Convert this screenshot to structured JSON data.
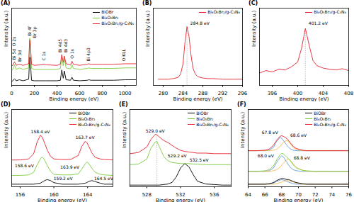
{
  "chart_data": [
    {
      "type": "line",
      "title": "(A)",
      "x_label": "Binding energy (eV)",
      "y_label": "Intensity (a.u.)",
      "xlim": [
        0,
        1100
      ],
      "xticks": [
        0,
        200,
        400,
        600,
        800,
        1000
      ],
      "ylim": [
        0,
        150
      ],
      "tick_labels": "x",
      "legend": "top-right",
      "x": [
        0,
        10,
        25,
        40,
        68,
        100,
        150,
        159,
        164,
        175,
        200,
        260,
        285,
        300,
        400,
        430,
        442,
        455,
        465,
        480,
        520,
        532,
        545,
        600,
        670,
        680,
        700,
        800,
        900,
        1000,
        1100
      ],
      "series": [
        {
          "name": "BiOBr",
          "color": "#000000",
          "values": [
            8,
            9,
            13,
            9,
            11,
            9,
            12,
            55,
            50,
            10,
            9,
            9,
            9,
            9,
            9,
            10,
            30,
            14,
            28,
            11,
            10,
            16,
            10,
            9,
            10,
            11,
            10,
            10,
            10,
            11,
            11
          ]
        },
        {
          "name": "Bi₄O₅Br₂",
          "color": "#7ccd3c",
          "values": [
            30,
            31,
            40,
            31,
            34,
            31,
            34,
            92,
            85,
            33,
            31,
            31,
            31,
            31,
            31,
            33,
            55,
            38,
            52,
            34,
            32,
            40,
            33,
            31,
            33,
            34,
            33,
            33,
            33,
            34,
            34
          ]
        },
        {
          "name": "Bi₄O₅Br₂/g-C₃N₄",
          "color": "#e8212e",
          "values": [
            38,
            39,
            46,
            39,
            41,
            39,
            42,
            88,
            82,
            41,
            39,
            40,
            41,
            40,
            39,
            41,
            60,
            45,
            57,
            42,
            40,
            47,
            41,
            39,
            41,
            42,
            41,
            41,
            41,
            42,
            42
          ]
        }
      ],
      "annotations": [
        {
          "text": "O 2s",
          "x": 25,
          "y": 76
        },
        {
          "text": "Bi 5d",
          "x": 25,
          "y": 50
        },
        {
          "text": "Br 3d",
          "x": 70,
          "y": 46
        },
        {
          "text": "Bi 4f",
          "x": 159,
          "y": 96
        },
        {
          "text": "Br 3p",
          "x": 205,
          "y": 92
        },
        {
          "text": "C 1s",
          "x": 285,
          "y": 48
        },
        {
          "text": "Bi 4d5",
          "x": 430,
          "y": 64
        },
        {
          "text": "Bi 4d3",
          "x": 480,
          "y": 64
        },
        {
          "text": "O 1s",
          "x": 532,
          "y": 52
        },
        {
          "text": "Bi 4p3",
          "x": 680,
          "y": 47
        },
        {
          "text": "O KLL",
          "x": 990,
          "y": 47
        }
      ]
    },
    {
      "type": "line",
      "title": "(B)",
      "x_label": "Binding energy (eV)",
      "y_label": "Intensity (a.u.)",
      "xlim": [
        278,
        296
      ],
      "xticks": [
        280,
        284,
        288,
        292,
        296
      ],
      "ylim": [
        0,
        125
      ],
      "tick_labels": "x",
      "legend": "top-right",
      "x": [
        279,
        280,
        281,
        282,
        283,
        283.5,
        284,
        284.4,
        284.8,
        285.2,
        285.6,
        286,
        286.5,
        287,
        288,
        289,
        290,
        292,
        294,
        296
      ],
      "series": [
        {
          "name": "Bi₄O₅Br₂/g-C₃N₄",
          "color": "#e8212e",
          "values": [
            10,
            10,
            10,
            11,
            13,
            18,
            35,
            70,
            95,
            80,
            50,
            28,
            18,
            14,
            12,
            11,
            11,
            10,
            10,
            10
          ]
        }
      ],
      "annotations": [
        {
          "text": "284.8 eV",
          "x": 287.4,
          "y": 100
        }
      ],
      "reference_lines": [
        284.8
      ]
    },
    {
      "type": "line",
      "title": "(C)",
      "x_label": "Binding energy (eV)",
      "y_label": "Intensity (a.u.)",
      "xlim": [
        394,
        408
      ],
      "xticks": [
        396,
        400,
        404,
        408
      ],
      "ylim": [
        0,
        125
      ],
      "tick_labels": "x",
      "legend": "top-right",
      "x": [
        394,
        395,
        396,
        397,
        398,
        399,
        400,
        400.6,
        401.2,
        401.8,
        402.4,
        403,
        404,
        405,
        406,
        407,
        408
      ],
      "series": [
        {
          "name": "Bi₄O₅Br₂/g-C₃N₄",
          "color": "#e8212e",
          "values": [
            20,
            24,
            22,
            26,
            25,
            30,
            38,
            60,
            92,
            65,
            40,
            32,
            28,
            26,
            25,
            27,
            24
          ]
        }
      ],
      "annotations": [
        {
          "text": "401.2 eV",
          "x": 403.2,
          "y": 100
        }
      ],
      "reference_lines": [
        401.2
      ]
    },
    {
      "type": "line",
      "title": "(D)",
      "x_label": "Binding energy (eV)",
      "y_label": "Intensity (a.u.)",
      "xlim": [
        155,
        167
      ],
      "xticks": [
        156,
        160,
        164
      ],
      "ylim": [
        0,
        150
      ],
      "tick_labels": "x",
      "legend": "top-right",
      "x": [
        155,
        156,
        157,
        157.6,
        158,
        158.4,
        158.6,
        158.8,
        159.2,
        159.6,
        160,
        161,
        162,
        162.9,
        163.3,
        163.7,
        163.9,
        164.1,
        164.5,
        164.9,
        165.5,
        166,
        167
      ],
      "series": [
        {
          "name": "BiOBr",
          "color": "#000000",
          "values": [
            5,
            5,
            5,
            5,
            6,
            7,
            9,
            11,
            14,
            12,
            8,
            5,
            5,
            5,
            6,
            7,
            8,
            10,
            12,
            10,
            7,
            5,
            5
          ]
        },
        {
          "name": "Bi₄O₅Br₂",
          "color": "#7ccd3c",
          "values": [
            22,
            22,
            23,
            28,
            42,
            54,
            58,
            55,
            42,
            30,
            24,
            23,
            23,
            25,
            34,
            44,
            48,
            46,
            36,
            28,
            24,
            23,
            22
          ]
        },
        {
          "name": "Bi₄O₅Br₂/g-C₃N₄",
          "color": "#e8212e",
          "values": [
            52,
            52,
            54,
            64,
            86,
            100,
            97,
            89,
            72,
            59,
            54,
            53,
            53,
            61,
            78,
            88,
            86,
            80,
            66,
            57,
            54,
            53,
            52
          ]
        }
      ],
      "annotations": [
        {
          "text": "158.4 eV",
          "x": 158.4,
          "y": 106
        },
        {
          "text": "163.7 eV",
          "x": 163.7,
          "y": 95
        },
        {
          "text": "158.6 eV",
          "x": 156.5,
          "y": 40
        },
        {
          "text": "163.9 eV",
          "x": 161.9,
          "y": 38
        },
        {
          "text": "159.2 eV",
          "x": 161.1,
          "y": 16
        },
        {
          "text": "164.5 eV",
          "x": 165.9,
          "y": 16
        }
      ]
    },
    {
      "type": "line",
      "title": "(E)",
      "x_label": "Binding energy (eV)",
      "y_label": "Intensity (a.u.)",
      "xlim": [
        526,
        538
      ],
      "xticks": [
        528,
        532,
        536
      ],
      "ylim": [
        0,
        140
      ],
      "tick_labels": "x",
      "legend": "top-right",
      "x": [
        526,
        527,
        528,
        528.5,
        529,
        529.2,
        529.5,
        530,
        530.5,
        531,
        531.5,
        532,
        532.5,
        533,
        533.5,
        534,
        535,
        536,
        537,
        538
      ],
      "series": [
        {
          "name": "BiOBr",
          "color": "#000000",
          "values": [
            3,
            3,
            3,
            3,
            3,
            3,
            3,
            4,
            5,
            8,
            18,
            34,
            42,
            36,
            22,
            10,
            5,
            4,
            3,
            3
          ]
        },
        {
          "name": "Bi₄O₅Br₂",
          "color": "#7ccd3c",
          "values": [
            40,
            41,
            50,
            70,
            81,
            82,
            72,
            55,
            47,
            44,
            43,
            42,
            42,
            42,
            41,
            41,
            40,
            40,
            40,
            40
          ]
        },
        {
          "name": "Bi₄O₅Br₂/g-C₃N₄",
          "color": "#e8212e",
          "values": [
            60,
            62,
            72,
            86,
            95,
            94,
            90,
            84,
            80,
            75,
            70,
            66,
            64,
            63,
            62,
            61,
            61,
            60,
            60,
            60
          ]
        }
      ],
      "annotations": [
        {
          "text": "529.0 eV",
          "x": 529.0,
          "y": 101
        },
        {
          "text": "529.2 eV",
          "x": 531.6,
          "y": 56
        },
        {
          "text": "532.5 eV",
          "x": 534.2,
          "y": 48
        }
      ],
      "reference_lines": [
        529.2
      ]
    },
    {
      "type": "line",
      "title": "(F)",
      "x_label": "Binding energy (eV)",
      "y_label": "Intensity (a.u.)",
      "xlim": [
        64,
        76
      ],
      "xticks": [
        64,
        66,
        68,
        70,
        72,
        74,
        76
      ],
      "ylim": [
        0,
        150
      ],
      "tick_labels": "x",
      "legend": "top-right",
      "x": [
        64,
        65,
        66,
        66.5,
        67,
        67.4,
        67.8,
        68,
        68.2,
        68.6,
        68.8,
        69,
        69.4,
        69.8,
        70.5,
        71,
        72,
        73,
        74,
        75,
        76
      ],
      "series": [
        {
          "name": "BiOBr",
          "color": "#000000",
          "values": [
            5,
            5,
            5,
            6,
            8,
            12,
            15,
            16,
            16,
            14,
            14,
            13,
            10,
            8,
            6,
            5,
            5,
            5,
            5,
            5,
            5
          ],
          "components": [
            {
              "color": "#3b7dd8",
              "values": [
                5,
                5,
                5,
                5,
                7,
                10,
                13,
                14,
                13,
                11,
                9,
                8,
                6,
                5,
                5,
                5,
                5,
                5,
                5,
                5,
                5
              ]
            },
            {
              "color": "#f5a623",
              "values": [
                5,
                5,
                5,
                5,
                5,
                6,
                8,
                9,
                10,
                12,
                12,
                11,
                9,
                7,
                5,
                5,
                5,
                5,
                5,
                5,
                5
              ]
            }
          ]
        },
        {
          "name": "Bi₄O₅Br₂",
          "color": "#7ccd3c",
          "values": [
            30,
            30,
            31,
            33,
            40,
            52,
            62,
            65,
            64,
            58,
            55,
            51,
            42,
            36,
            32,
            31,
            30,
            30,
            30,
            30,
            30
          ],
          "components": [
            {
              "color": "#3b7dd8",
              "values": [
                30,
                30,
                30,
                31,
                36,
                47,
                57,
                60,
                58,
                48,
                43,
                38,
                33,
                31,
                30,
                30,
                30,
                30,
                30,
                30,
                30
              ]
            },
            {
              "color": "#f5a623",
              "values": [
                30,
                30,
                30,
                30,
                31,
                33,
                38,
                42,
                46,
                52,
                54,
                52,
                44,
                37,
                32,
                30,
                30,
                30,
                30,
                30,
                30
              ]
            }
          ]
        },
        {
          "name": "Bi₄O₅Br₂/g-C₃N₄",
          "color": "#e8212e",
          "values": [
            70,
            70,
            71,
            73,
            80,
            90,
            98,
            99,
            98,
            94,
            90,
            86,
            78,
            74,
            71,
            70,
            70,
            70,
            70,
            70,
            70
          ],
          "components": [
            {
              "color": "#3b7dd8",
              "values": [
                70,
                70,
                70,
                71,
                76,
                88,
                96,
                94,
                90,
                81,
                77,
                74,
                71,
                70,
                70,
                70,
                70,
                70,
                70,
                70,
                70
              ]
            },
            {
              "color": "#f5a623",
              "values": [
                70,
                70,
                70,
                70,
                71,
                73,
                78,
                82,
                86,
                90,
                88,
                84,
                76,
                72,
                70,
                70,
                70,
                70,
                70,
                70,
                70
              ]
            }
          ]
        }
      ],
      "annotations": [
        {
          "text": "67.8 eV",
          "x": 66.6,
          "y": 105
        },
        {
          "text": "68.6 eV",
          "x": 70.0,
          "y": 99
        },
        {
          "text": "68.0 eV",
          "x": 66.1,
          "y": 60
        },
        {
          "text": "68.8 eV",
          "x": 70.4,
          "y": 55
        }
      ]
    }
  ]
}
